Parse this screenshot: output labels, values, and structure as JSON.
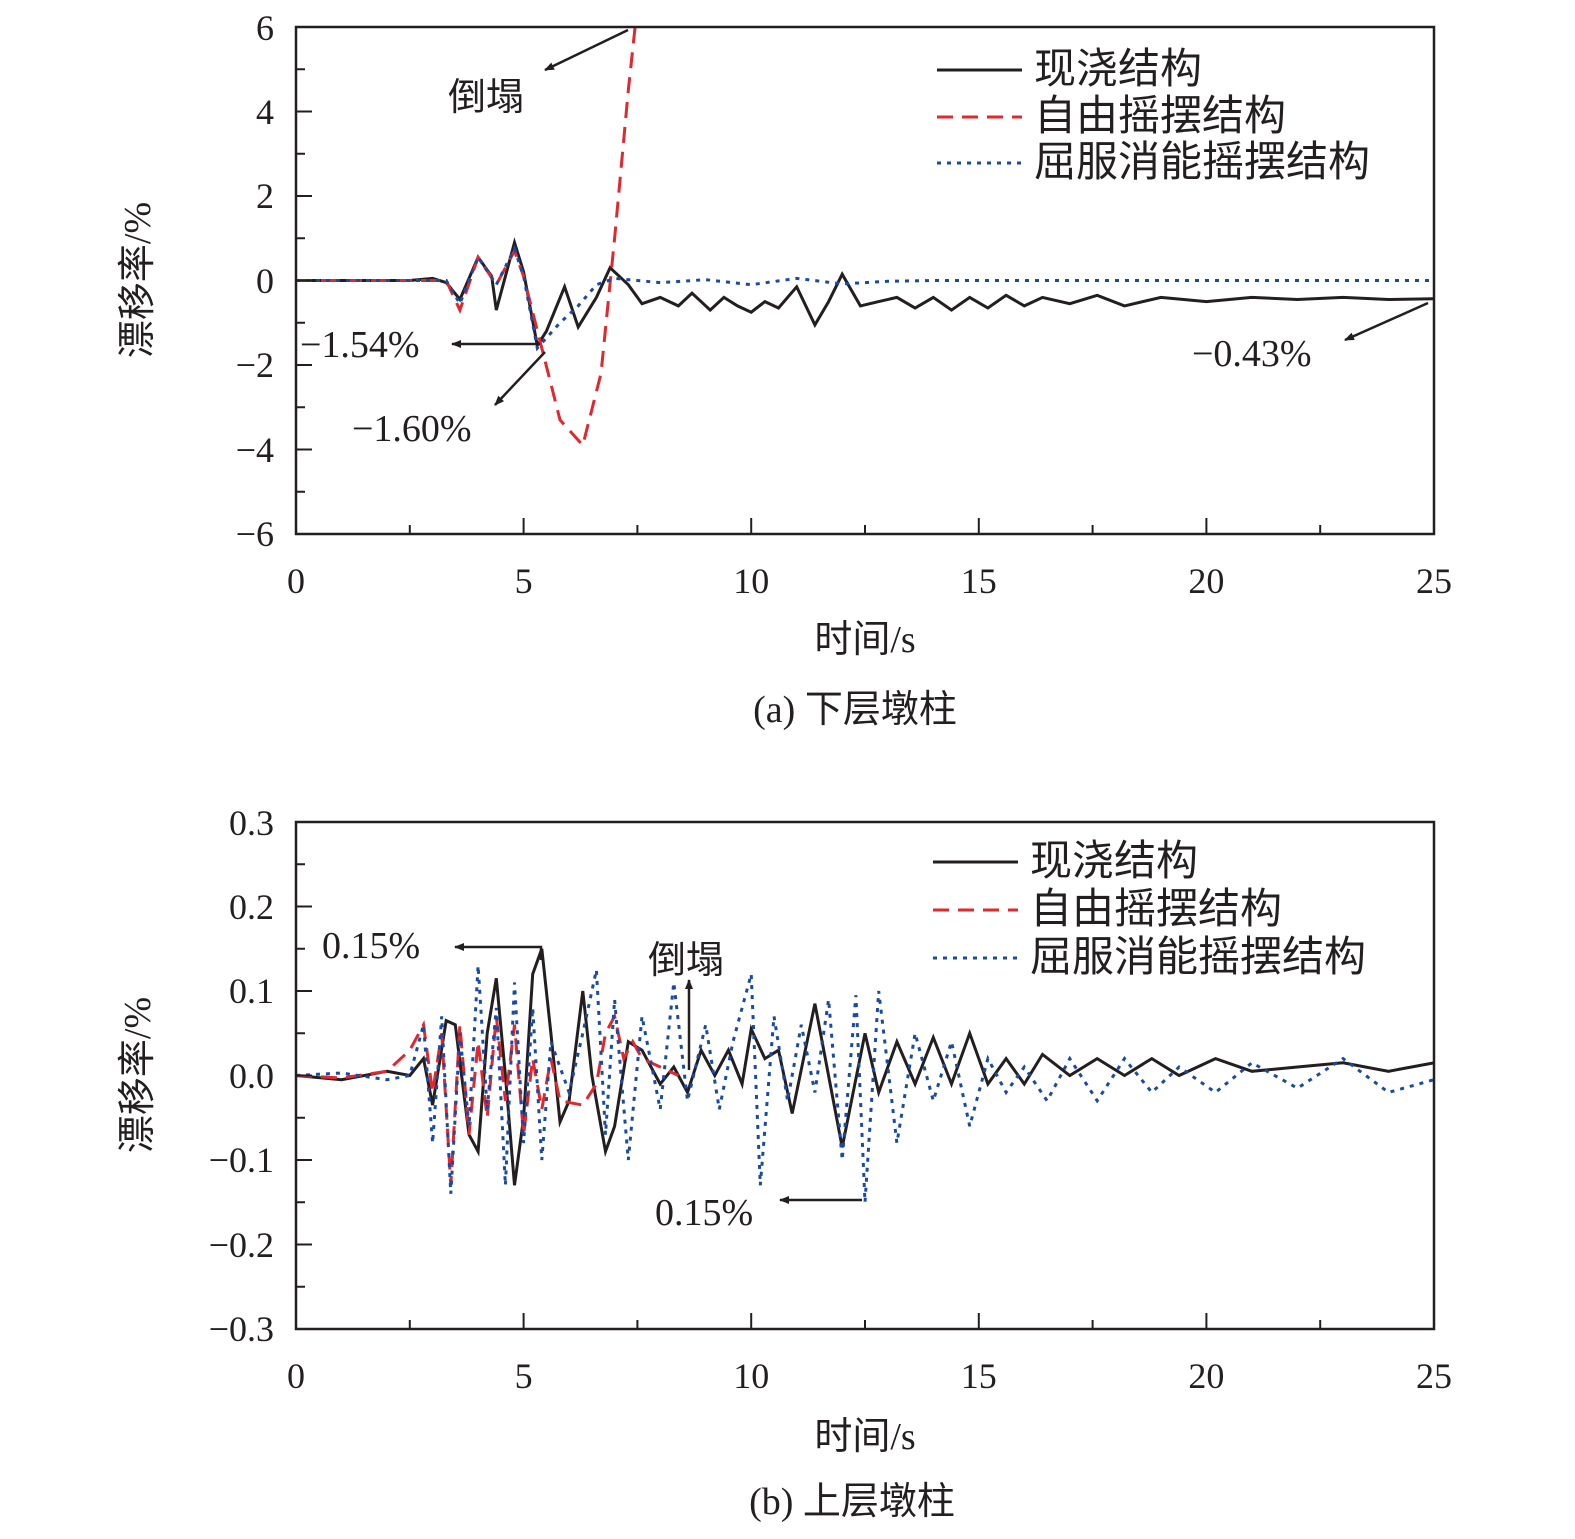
{
  "chart_data": [
    {
      "type": "line",
      "caption": "(a) 下层墩柱",
      "xlabel": "时间/s",
      "ylabel": "漂移率/%",
      "xlim": [
        0,
        25
      ],
      "ylim": [
        -6,
        6
      ],
      "xticks": [
        0,
        5,
        10,
        15,
        20,
        25
      ],
      "yticks": [
        -6,
        -4,
        -2,
        0,
        2,
        4,
        6
      ],
      "ytick_labels": [
        "−6",
        "−4",
        "−2",
        "0",
        "2",
        "4",
        "6"
      ],
      "grid": false,
      "legend_position": "top-right",
      "series": [
        {
          "name": "现浇结构",
          "color": "#231f20",
          "style": "solid",
          "points": [
            [
              0,
              0
            ],
            [
              2.5,
              0
            ],
            [
              3.0,
              0.05
            ],
            [
              3.3,
              -0.05
            ],
            [
              3.6,
              -0.45
            ],
            [
              4.0,
              0.55
            ],
            [
              4.3,
              0.1
            ],
            [
              4.4,
              -0.7
            ],
            [
              4.8,
              0.9
            ],
            [
              5.0,
              0.2
            ],
            [
              5.3,
              -1.54
            ],
            [
              5.5,
              -1.2
            ],
            [
              5.9,
              -0.15
            ],
            [
              6.2,
              -1.1
            ],
            [
              6.6,
              -0.4
            ],
            [
              6.9,
              0.3
            ],
            [
              7.3,
              -0.1
            ],
            [
              7.6,
              -0.55
            ],
            [
              8.0,
              -0.4
            ],
            [
              8.4,
              -0.6
            ],
            [
              8.7,
              -0.3
            ],
            [
              9.1,
              -0.7
            ],
            [
              9.4,
              -0.4
            ],
            [
              9.7,
              -0.6
            ],
            [
              10.0,
              -0.75
            ],
            [
              10.3,
              -0.5
            ],
            [
              10.6,
              -0.65
            ],
            [
              11.0,
              -0.15
            ],
            [
              11.4,
              -1.05
            ],
            [
              11.7,
              -0.5
            ],
            [
              12.0,
              0.15
            ],
            [
              12.4,
              -0.6
            ],
            [
              12.8,
              -0.5
            ],
            [
              13.2,
              -0.4
            ],
            [
              13.6,
              -0.65
            ],
            [
              14.0,
              -0.4
            ],
            [
              14.4,
              -0.7
            ],
            [
              14.8,
              -0.4
            ],
            [
              15.2,
              -0.65
            ],
            [
              15.6,
              -0.35
            ],
            [
              16.0,
              -0.6
            ],
            [
              16.4,
              -0.4
            ],
            [
              17.0,
              -0.55
            ],
            [
              17.6,
              -0.35
            ],
            [
              18.2,
              -0.6
            ],
            [
              19.0,
              -0.4
            ],
            [
              20.0,
              -0.5
            ],
            [
              21.0,
              -0.4
            ],
            [
              22.0,
              -0.45
            ],
            [
              23.0,
              -0.4
            ],
            [
              24.0,
              -0.45
            ],
            [
              25.0,
              -0.43
            ]
          ]
        },
        {
          "name": "自由摇摆结构",
          "color": "#e0282e",
          "style": "dashed",
          "points": [
            [
              0,
              0
            ],
            [
              2.5,
              0
            ],
            [
              3.3,
              0
            ],
            [
              3.6,
              -0.7
            ],
            [
              4.0,
              0.55
            ],
            [
              4.4,
              -0.1
            ],
            [
              4.8,
              0.7
            ],
            [
              5.0,
              0.1
            ],
            [
              5.4,
              -1.6
            ],
            [
              5.8,
              -3.3
            ],
            [
              6.3,
              -3.9
            ],
            [
              6.7,
              -2.2
            ],
            [
              7.0,
              1.0
            ],
            [
              7.3,
              4.5
            ],
            [
              7.45,
              6.0
            ]
          ]
        },
        {
          "name": "屈服消能摇摆结构",
          "color": "#1a4aa8",
          "style": "dotted",
          "points": [
            [
              0,
              0
            ],
            [
              2.5,
              0
            ],
            [
              3.3,
              0
            ],
            [
              3.6,
              -0.55
            ],
            [
              4.0,
              0.55
            ],
            [
              4.4,
              -0.1
            ],
            [
              4.8,
              0.75
            ],
            [
              5.0,
              0.1
            ],
            [
              5.3,
              -1.6
            ],
            [
              5.8,
              -1.0
            ],
            [
              6.2,
              -0.6
            ],
            [
              6.6,
              -0.1
            ],
            [
              7.0,
              0.05
            ],
            [
              8.0,
              -0.05
            ],
            [
              9.0,
              0.02
            ],
            [
              10.0,
              -0.1
            ],
            [
              11.0,
              0.05
            ],
            [
              12.0,
              -0.08
            ],
            [
              13.0,
              -0.02
            ],
            [
              14.0,
              0
            ],
            [
              25.0,
              0
            ]
          ]
        }
      ],
      "annotations": [
        {
          "text": "倒塌"
        },
        {
          "text": "−1.54%"
        },
        {
          "text": "−1.60%"
        },
        {
          "text": "−0.43%"
        }
      ]
    },
    {
      "type": "line",
      "caption": "(b) 上层墩柱",
      "xlabel": "时间/s",
      "ylabel": "漂移率/%",
      "xlim": [
        0,
        25
      ],
      "ylim": [
        -0.3,
        0.3
      ],
      "xticks": [
        0,
        5,
        10,
        15,
        20,
        25
      ],
      "yticks": [
        -0.3,
        -0.2,
        -0.1,
        0.0,
        0.1,
        0.2,
        0.3
      ],
      "ytick_labels": [
        "−0.3",
        "−0.2",
        "−0.1",
        "0.0",
        "0.1",
        "0.2",
        "0.3"
      ],
      "grid": false,
      "legend_position": "top-right",
      "series": [
        {
          "name": "现浇结构",
          "color": "#231f20",
          "style": "solid",
          "points": [
            [
              0,
              0
            ],
            [
              1.0,
              -0.005
            ],
            [
              2.0,
              0.005
            ],
            [
              2.5,
              0.0
            ],
            [
              2.8,
              0.02
            ],
            [
              3.0,
              -0.035
            ],
            [
              3.3,
              0.065
            ],
            [
              3.5,
              0.06
            ],
            [
              3.8,
              -0.07
            ],
            [
              4.0,
              -0.09
            ],
            [
              4.2,
              0.05
            ],
            [
              4.4,
              0.115
            ],
            [
              4.6,
              0.0
            ],
            [
              4.8,
              -0.13
            ],
            [
              5.0,
              -0.05
            ],
            [
              5.2,
              0.12
            ],
            [
              5.4,
              0.15
            ],
            [
              5.6,
              0.05
            ],
            [
              5.8,
              -0.055
            ],
            [
              6.0,
              -0.03
            ],
            [
              6.3,
              0.1
            ],
            [
              6.5,
              0.0
            ],
            [
              6.8,
              -0.09
            ],
            [
              7.0,
              -0.06
            ],
            [
              7.3,
              0.04
            ],
            [
              7.6,
              0.03
            ],
            [
              8.0,
              -0.01
            ],
            [
              8.3,
              0.01
            ],
            [
              8.6,
              -0.02
            ],
            [
              8.9,
              0.03
            ],
            [
              9.2,
              0.0
            ],
            [
              9.5,
              0.03
            ],
            [
              9.8,
              -0.01
            ],
            [
              10.0,
              0.055
            ],
            [
              10.3,
              0.02
            ],
            [
              10.6,
              0.03
            ],
            [
              10.9,
              -0.045
            ],
            [
              11.4,
              0.085
            ],
            [
              12.0,
              -0.085
            ],
            [
              12.5,
              0.05
            ],
            [
              12.8,
              -0.02
            ],
            [
              13.2,
              0.04
            ],
            [
              13.6,
              -0.01
            ],
            [
              14.0,
              0.045
            ],
            [
              14.4,
              -0.01
            ],
            [
              14.8,
              0.05
            ],
            [
              15.2,
              -0.01
            ],
            [
              15.6,
              0.02
            ],
            [
              16.0,
              -0.01
            ],
            [
              16.4,
              0.025
            ],
            [
              17.0,
              0.0
            ],
            [
              17.6,
              0.02
            ],
            [
              18.2,
              0.0
            ],
            [
              18.8,
              0.02
            ],
            [
              19.4,
              0.0
            ],
            [
              20.2,
              0.02
            ],
            [
              21.0,
              0.005
            ],
            [
              22.0,
              0.01
            ],
            [
              23.0,
              0.015
            ],
            [
              24.0,
              0.005
            ],
            [
              25.0,
              0.015
            ]
          ]
        },
        {
          "name": "自由摇摆结构",
          "color": "#e0282e",
          "style": "dashed",
          "points": [
            [
              0,
              0
            ],
            [
              1.0,
              -0.003
            ],
            [
              2.0,
              0.005
            ],
            [
              2.5,
              0.03
            ],
            [
              2.8,
              0.06
            ],
            [
              3.0,
              -0.02
            ],
            [
              3.2,
              0.05
            ],
            [
              3.4,
              -0.13
            ],
            [
              3.6,
              0.06
            ],
            [
              3.8,
              -0.07
            ],
            [
              4.0,
              0.04
            ],
            [
              4.2,
              -0.05
            ],
            [
              4.4,
              0.07
            ],
            [
              4.6,
              -0.03
            ],
            [
              4.8,
              0.06
            ],
            [
              5.0,
              -0.07
            ],
            [
              5.2,
              0.02
            ],
            [
              5.4,
              -0.04
            ],
            [
              5.6,
              0.02
            ],
            [
              5.8,
              -0.03
            ],
            [
              6.3,
              -0.035
            ],
            [
              6.6,
              -0.01
            ],
            [
              6.8,
              0.05
            ],
            [
              7.0,
              0.07
            ],
            [
              7.2,
              0.02
            ],
            [
              7.4,
              0.04
            ],
            [
              7.6,
              0.02
            ],
            [
              8.0,
              0.01
            ],
            [
              8.4,
              0.0
            ]
          ]
        },
        {
          "name": "屈服消能摇摆结构",
          "color": "#1a4aa8",
          "style": "dotted",
          "points": [
            [
              0,
              0
            ],
            [
              1.0,
              0.003
            ],
            [
              2.0,
              -0.005
            ],
            [
              2.5,
              0.0
            ],
            [
              2.8,
              0.06
            ],
            [
              3.0,
              -0.08
            ],
            [
              3.2,
              0.07
            ],
            [
              3.4,
              -0.14
            ],
            [
              3.6,
              0.05
            ],
            [
              3.8,
              -0.06
            ],
            [
              4.0,
              0.13
            ],
            [
              4.2,
              -0.04
            ],
            [
              4.4,
              0.08
            ],
            [
              4.6,
              -0.13
            ],
            [
              4.8,
              0.11
            ],
            [
              5.0,
              -0.08
            ],
            [
              5.2,
              0.08
            ],
            [
              5.4,
              -0.1
            ],
            [
              5.6,
              0.04
            ],
            [
              6.0,
              -0.02
            ],
            [
              6.3,
              0.05
            ],
            [
              6.6,
              0.125
            ],
            [
              6.8,
              -0.07
            ],
            [
              7.0,
              0.09
            ],
            [
              7.3,
              -0.1
            ],
            [
              7.6,
              0.07
            ],
            [
              8.0,
              -0.04
            ],
            [
              8.3,
              0.11
            ],
            [
              8.6,
              -0.03
            ],
            [
              9.0,
              0.06
            ],
            [
              9.3,
              -0.04
            ],
            [
              9.6,
              0.04
            ],
            [
              10.0,
              0.12
            ],
            [
              10.2,
              -0.13
            ],
            [
              10.5,
              0.07
            ],
            [
              10.8,
              -0.03
            ],
            [
              11.1,
              0.06
            ],
            [
              11.4,
              -0.02
            ],
            [
              11.7,
              0.09
            ],
            [
              12.0,
              -0.1
            ],
            [
              12.3,
              0.095
            ],
            [
              12.5,
              -0.15
            ],
            [
              12.8,
              0.1
            ],
            [
              13.2,
              -0.08
            ],
            [
              13.6,
              0.05
            ],
            [
              14.0,
              -0.03
            ],
            [
              14.4,
              0.04
            ],
            [
              14.8,
              -0.06
            ],
            [
              15.2,
              0.02
            ],
            [
              15.6,
              -0.02
            ],
            [
              16.0,
              0.01
            ],
            [
              16.5,
              -0.03
            ],
            [
              17.0,
              0.02
            ],
            [
              17.6,
              -0.03
            ],
            [
              18.2,
              0.02
            ],
            [
              18.8,
              -0.02
            ],
            [
              19.4,
              0.01
            ],
            [
              20.2,
              -0.02
            ],
            [
              21.0,
              0.015
            ],
            [
              22.0,
              -0.015
            ],
            [
              23.0,
              0.02
            ],
            [
              24.0,
              -0.02
            ],
            [
              25.0,
              -0.005
            ]
          ]
        }
      ],
      "annotations": [
        {
          "text": "0.15%"
        },
        {
          "text": "倒塌"
        },
        {
          "text": "0.15%"
        }
      ]
    }
  ]
}
